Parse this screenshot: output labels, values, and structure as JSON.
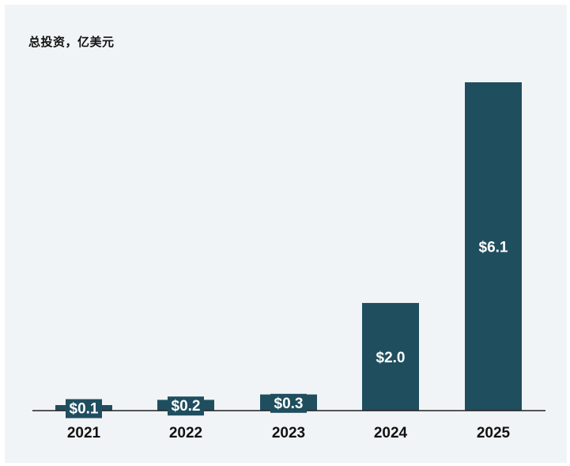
{
  "chart_data": {
    "type": "bar",
    "title": "总投资，亿美元",
    "categories": [
      "2021",
      "2022",
      "2023",
      "2024",
      "2025"
    ],
    "values": [
      0.1,
      0.2,
      0.3,
      2.0,
      6.1
    ],
    "data_labels": [
      "$0.1",
      "$0.2",
      "$0.3",
      "$2.0",
      "$6.1"
    ],
    "xlabel": "",
    "ylabel": "",
    "ylim": [
      0,
      6.1
    ],
    "grid": false,
    "colors": {
      "bar": "#1f4e5f",
      "label_box": "#1f4e5f",
      "background": "#f1f4f6",
      "axis": "#222222"
    }
  }
}
